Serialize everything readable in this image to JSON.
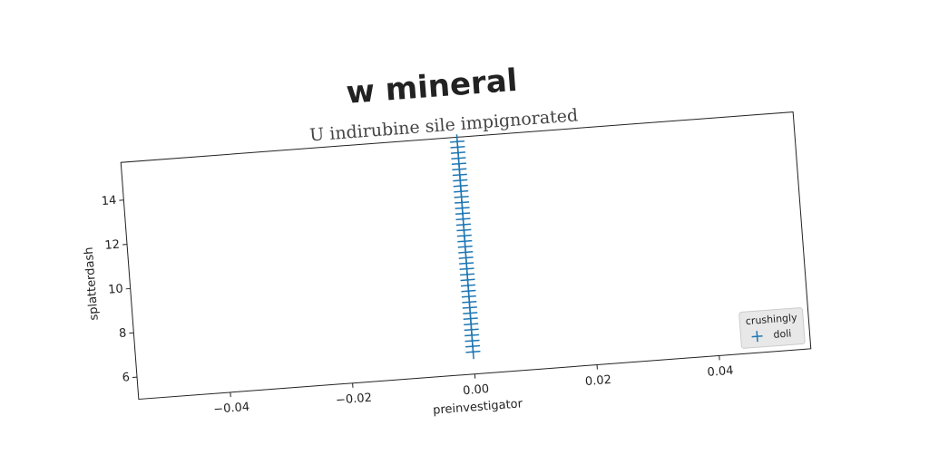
{
  "chart_data": {
    "type": "scatter",
    "title": "w mineral",
    "subtitle": "U indirubine sile impignorated",
    "x_label": "preinvestigator",
    "y_label": "splatterdash",
    "series": [
      {
        "name": "doli",
        "color": "#1f77b4",
        "marker": "+",
        "x": [
          0,
          0,
          0,
          0,
          0,
          0,
          0,
          0,
          0,
          0,
          0,
          0,
          0,
          0,
          0,
          0,
          0,
          0,
          0,
          0,
          0,
          0,
          0,
          0,
          0,
          0,
          0,
          0,
          0,
          0,
          0,
          0,
          0,
          0,
          0,
          0,
          0,
          0,
          0
        ],
        "values": [
          6,
          6.25,
          6.5,
          6.75,
          7,
          7.25,
          7.5,
          7.75,
          8,
          8.25,
          8.5,
          8.75,
          9,
          9.25,
          9.5,
          9.75,
          10,
          10.25,
          10.5,
          10.75,
          11,
          11.25,
          11.5,
          11.75,
          12,
          12.25,
          12.5,
          12.75,
          13,
          13.25,
          13.5,
          13.75,
          14,
          14.25,
          14.5,
          14.75,
          15,
          15.25,
          15.5
        ]
      }
    ],
    "legend_title": "crushingly",
    "legend": "lower right",
    "xlim": [
      -0.055,
      0.055
    ],
    "xticks": [
      {
        "value": -0.04,
        "label": "−0.04"
      },
      {
        "value": -0.02,
        "label": "−0.02"
      },
      {
        "value": 0,
        "label": "0.00"
      },
      0.02,
      0.04
    ],
    "ylim": [
      5.0,
      15.7
    ],
    "yticks": [
      6,
      8,
      10,
      12,
      14
    ]
  }
}
